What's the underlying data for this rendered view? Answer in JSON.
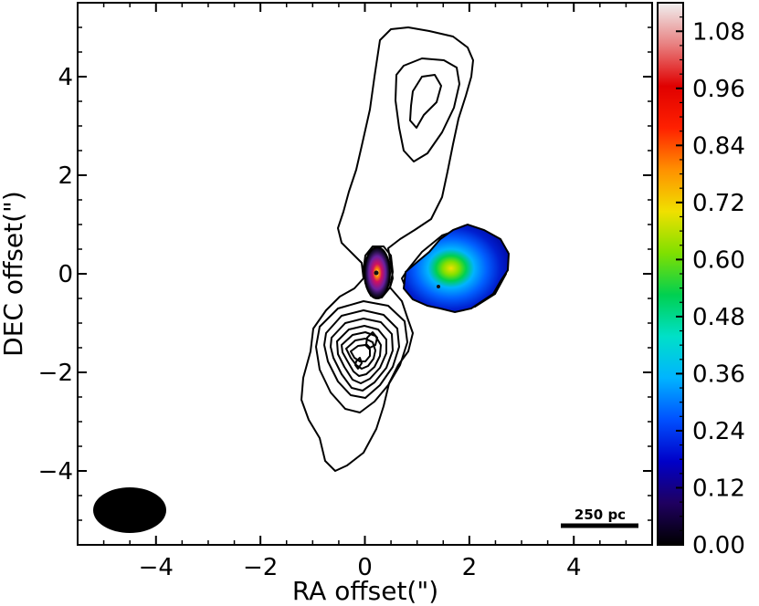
{
  "chart_data": {
    "type": "heatmap",
    "xlabel": "RA offset(\")",
    "ylabel": "DEC offset(\")",
    "xlim": [
      -5.5,
      5.5
    ],
    "ylim": [
      -5.5,
      5.5
    ],
    "x_ticks": [
      -4,
      -2,
      0,
      2,
      4
    ],
    "y_ticks": [
      -4,
      -2,
      0,
      2,
      4
    ],
    "x_tick_labels": [
      "−4",
      "−2",
      "0",
      "2",
      "4"
    ],
    "y_tick_labels": [
      "−4",
      "−2",
      "0",
      "2",
      "4"
    ],
    "colorbar": {
      "min": 0.0,
      "max": 1.14,
      "ticks": [
        0.0,
        0.12,
        0.24,
        0.36,
        0.48,
        0.6,
        0.72,
        0.84,
        0.96,
        1.08
      ],
      "tick_labels": [
        "0.00",
        "0.12",
        "0.24",
        "0.36",
        "0.48",
        "0.60",
        "0.72",
        "0.84",
        "0.96",
        "1.08"
      ],
      "colormap": [
        "#000000",
        "#1f0060",
        "#0000c8",
        "#0050ff",
        "#00b4ff",
        "#00e0c8",
        "#00d050",
        "#80e000",
        "#f0e000",
        "#ff9000",
        "#ff2000",
        "#e00000",
        "#e88080",
        "#f0f0f0"
      ]
    },
    "core_source": {
      "x": 0.25,
      "y": 0.0,
      "peak": 1.0
    },
    "knot_source": {
      "x": 1.55,
      "y": 0.1,
      "peak": 0.6
    },
    "contour_peaks": [
      {
        "x": 1.2,
        "y": 3.6
      },
      {
        "x": -0.4,
        "y": -1.4
      }
    ],
    "beam": {
      "x": -4.5,
      "y": -4.85,
      "major": 1.5,
      "minor": 0.9
    },
    "scale_bar": {
      "label": "250 pc",
      "x_start": 3.75,
      "x_end": 5.25,
      "y": -5.2
    }
  }
}
